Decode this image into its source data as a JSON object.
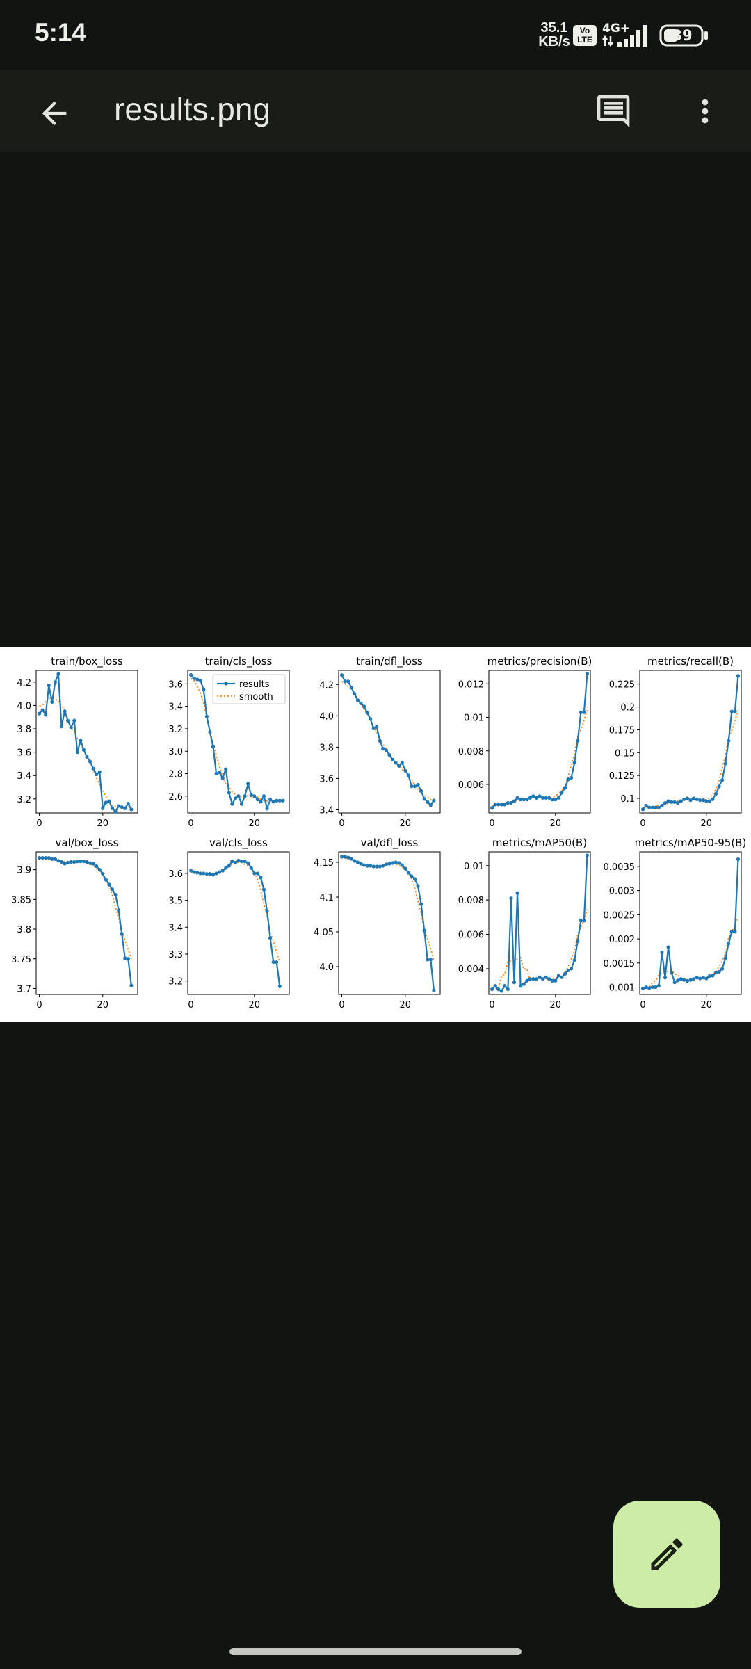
{
  "status_bar": {
    "time": "5:14",
    "net_speed_value": "35.1",
    "net_speed_unit": "KB/s",
    "volte_top": "Vo",
    "volte_bottom": "LTE",
    "network": "4G+",
    "battery": "39"
  },
  "app_bar": {
    "title": "results.png",
    "back_icon": "arrow-back-icon",
    "comment_icon": "comment-icon",
    "more_icon": "more-vert-icon"
  },
  "fab": {
    "icon": "edit-pencil-icon"
  },
  "colors": {
    "results": "#1f77b4",
    "smooth": "#ff7f0e"
  },
  "legend": {
    "results": "results",
    "smooth": "smooth"
  },
  "chart_data": [
    {
      "type": "line",
      "title": "train/box_loss",
      "ylim": [
        3.08,
        4.3
      ],
      "yticks": [
        3.2,
        3.4,
        3.6,
        3.8,
        4.0,
        4.2
      ],
      "xlim": [
        -1,
        31
      ],
      "xticks": [
        0,
        20
      ],
      "series": [
        {
          "values": [
            3.93,
            3.96,
            3.92,
            4.17,
            4.03,
            4.2,
            4.27,
            3.82,
            3.95,
            3.87,
            3.81,
            3.87,
            3.6,
            3.7,
            3.62,
            3.56,
            3.52,
            3.46,
            3.41,
            3.43,
            3.12,
            3.17,
            3.18,
            3.12,
            3.09,
            3.14,
            3.13,
            3.12,
            3.16,
            3.11
          ]
        }
      ]
    },
    {
      "type": "line",
      "title": "train/cls_loss",
      "ylim": [
        2.45,
        3.72
      ],
      "yticks": [
        2.6,
        2.8,
        3.0,
        3.2,
        3.4,
        3.6
      ],
      "xlim": [
        -1,
        31
      ],
      "xticks": [
        0,
        20
      ],
      "legend": true,
      "series": [
        {
          "values": [
            3.68,
            3.65,
            3.64,
            3.63,
            3.55,
            3.31,
            3.17,
            3.04,
            2.8,
            2.81,
            2.76,
            2.84,
            2.63,
            2.53,
            2.58,
            2.6,
            2.53,
            2.6,
            2.71,
            2.61,
            2.6,
            2.57,
            2.55,
            2.6,
            2.49,
            2.57,
            2.55,
            2.56,
            2.56,
            2.56
          ]
        }
      ]
    },
    {
      "type": "line",
      "title": "train/dfl_loss",
      "ylim": [
        3.38,
        4.29
      ],
      "yticks": [
        3.4,
        3.6,
        3.8,
        4.0,
        4.2
      ],
      "xlim": [
        -1,
        31
      ],
      "xticks": [
        0,
        20
      ],
      "series": [
        {
          "values": [
            4.26,
            4.22,
            4.22,
            4.18,
            4.14,
            4.1,
            4.08,
            4.06,
            4.02,
            3.98,
            3.92,
            3.93,
            3.84,
            3.79,
            3.78,
            3.75,
            3.72,
            3.7,
            3.68,
            3.7,
            3.65,
            3.62,
            3.55,
            3.55,
            3.56,
            3.52,
            3.47,
            3.45,
            3.43,
            3.46
          ]
        }
      ]
    },
    {
      "type": "line",
      "title": "metrics/precision(B)",
      "ylim": [
        0.0043,
        0.0128
      ],
      "yticks": [
        0.006,
        0.008,
        0.01,
        0.012
      ],
      "xlim": [
        -1,
        31
      ],
      "xticks": [
        0,
        20
      ],
      "series": [
        {
          "values": [
            0.0046,
            0.0048,
            0.0048,
            0.0048,
            0.0048,
            0.0049,
            0.0049,
            0.005,
            0.0052,
            0.0051,
            0.0051,
            0.0051,
            0.0052,
            0.0053,
            0.0052,
            0.0053,
            0.0052,
            0.0052,
            0.0052,
            0.0051,
            0.0051,
            0.0052,
            0.0055,
            0.0058,
            0.0063,
            0.0064,
            0.0073,
            0.0086,
            0.0103,
            0.0103,
            0.0126
          ]
        }
      ]
    },
    {
      "type": "line",
      "title": "metrics/recall(B)",
      "ylim": [
        0.084,
        0.24
      ],
      "yticks": [
        0.1,
        0.125,
        0.15,
        0.175,
        0.2,
        0.225
      ],
      "xlim": [
        -1,
        31
      ],
      "xticks": [
        0,
        20
      ],
      "series": [
        {
          "values": [
            0.088,
            0.092,
            0.09,
            0.09,
            0.09,
            0.09,
            0.092,
            0.095,
            0.097,
            0.096,
            0.096,
            0.095,
            0.097,
            0.099,
            0.1,
            0.098,
            0.1,
            0.099,
            0.098,
            0.098,
            0.097,
            0.097,
            0.099,
            0.105,
            0.113,
            0.12,
            0.138,
            0.163,
            0.195,
            0.195,
            0.234
          ]
        }
      ]
    },
    {
      "type": "line",
      "title": "val/box_loss",
      "ylim": [
        3.69,
        3.93
      ],
      "yticks": [
        3.7,
        3.75,
        3.8,
        3.85,
        3.9
      ],
      "xlim": [
        -1,
        31
      ],
      "xticks": [
        0,
        20
      ],
      "series": [
        {
          "values": [
            3.92,
            3.92,
            3.92,
            3.92,
            3.918,
            3.918,
            3.915,
            3.913,
            3.91,
            3.912,
            3.913,
            3.913,
            3.914,
            3.914,
            3.914,
            3.913,
            3.911,
            3.91,
            3.906,
            3.9,
            3.893,
            3.883,
            3.875,
            3.867,
            3.858,
            3.832,
            3.792,
            3.751,
            3.75,
            3.705
          ]
        }
      ]
    },
    {
      "type": "line",
      "title": "val/cls_loss",
      "ylim": [
        3.15,
        3.68
      ],
      "yticks": [
        3.2,
        3.3,
        3.4,
        3.5,
        3.6
      ],
      "xlim": [
        -1,
        31
      ],
      "xticks": [
        0,
        20
      ],
      "series": [
        {
          "values": [
            3.61,
            3.605,
            3.603,
            3.6,
            3.6,
            3.598,
            3.598,
            3.595,
            3.6,
            3.605,
            3.61,
            3.62,
            3.628,
            3.645,
            3.64,
            3.648,
            3.645,
            3.645,
            3.638,
            3.62,
            3.6,
            3.6,
            3.585,
            3.54,
            3.46,
            3.36,
            3.27,
            3.27,
            3.18
          ]
        }
      ]
    },
    {
      "type": "line",
      "title": "val/dfl_loss",
      "ylim": [
        3.96,
        4.165
      ],
      "yticks": [
        4.0,
        4.05,
        4.1,
        4.15
      ],
      "xlim": [
        -1,
        31
      ],
      "xticks": [
        0,
        20
      ],
      "series": [
        {
          "values": [
            4.158,
            4.158,
            4.157,
            4.155,
            4.152,
            4.15,
            4.148,
            4.146,
            4.145,
            4.145,
            4.144,
            4.144,
            4.144,
            4.145,
            4.147,
            4.148,
            4.149,
            4.15,
            4.149,
            4.146,
            4.141,
            4.135,
            4.13,
            4.126,
            4.116,
            4.09,
            4.052,
            4.01,
            4.01,
            3.966
          ]
        }
      ]
    },
    {
      "type": "line",
      "title": "metrics/mAP50(B)",
      "ylim": [
        0.0025,
        0.0108
      ],
      "yticks": [
        0.004,
        0.006,
        0.008,
        0.01
      ],
      "xlim": [
        -1,
        31
      ],
      "xticks": [
        0,
        20
      ],
      "series": [
        {
          "values": [
            0.0028,
            0.003,
            0.0028,
            0.0027,
            0.003,
            0.0028,
            0.0081,
            0.0032,
            0.0084,
            0.003,
            0.0031,
            0.0033,
            0.0034,
            0.0034,
            0.0034,
            0.0035,
            0.0034,
            0.0035,
            0.0034,
            0.0033,
            0.0033,
            0.0036,
            0.0035,
            0.0037,
            0.0039,
            0.004,
            0.0045,
            0.0056,
            0.0068,
            0.0068,
            0.0106
          ]
        }
      ]
    },
    {
      "type": "line",
      "title": "metrics/mAP50-95(B)",
      "ylim": [
        0.00085,
        0.0038
      ],
      "yticks": [
        0.001,
        0.0015,
        0.002,
        0.0025,
        0.003,
        0.0035
      ],
      "xlim": [
        -1,
        31
      ],
      "xticks": [
        0,
        20
      ],
      "series": [
        {
          "values": [
            0.00097,
            0.001,
            0.00098,
            0.001,
            0.001,
            0.00103,
            0.00172,
            0.0012,
            0.00183,
            0.0013,
            0.0011,
            0.00114,
            0.00117,
            0.00115,
            0.00113,
            0.00115,
            0.00117,
            0.0012,
            0.00118,
            0.0012,
            0.00118,
            0.00123,
            0.00124,
            0.0013,
            0.00132,
            0.00138,
            0.0016,
            0.0019,
            0.00215,
            0.00215,
            0.00365
          ]
        }
      ]
    }
  ]
}
